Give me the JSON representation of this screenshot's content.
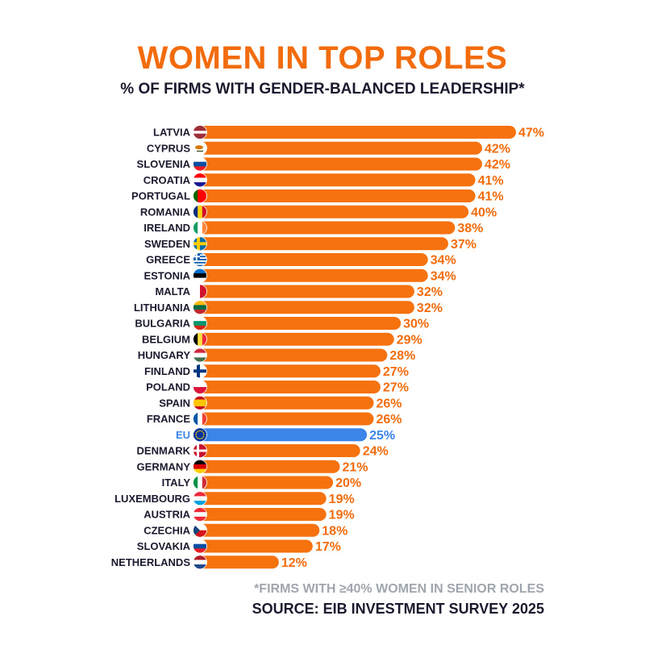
{
  "header": {
    "title": "WOMEN IN TOP ROLES",
    "subtitle": "% OF FIRMS WITH GENDER-BALANCED LEADERSHIP*"
  },
  "footer": {
    "note": "*FIRMS WITH ≥40% WOMEN IN SENIOR ROLES",
    "source": "SOURCE: EIB INVESTMENT SURVEY 2025"
  },
  "colors": {
    "bar": "#f5720f",
    "highlight": "#3b84e8",
    "label": "#1a1a2e",
    "value": "#f26c0d"
  },
  "chart_data": {
    "type": "bar",
    "orientation": "horizontal",
    "title": "WOMEN IN TOP ROLES",
    "subtitle": "% OF FIRMS WITH GENDER-BALANCED LEADERSHIP*",
    "xlabel": "",
    "ylabel": "",
    "unit": "%",
    "xlim": [
      0,
      47
    ],
    "highlight": "EU",
    "categories": [
      "LATVIA",
      "CYPRUS",
      "SLOVENIA",
      "CROATIA",
      "PORTUGAL",
      "ROMANIA",
      "IRELAND",
      "SWEDEN",
      "GREECE",
      "ESTONIA",
      "MALTA",
      "LITHUANIA",
      "BULGARIA",
      "BELGIUM",
      "HUNGARY",
      "FINLAND",
      "POLAND",
      "SPAIN",
      "FRANCE",
      "EU",
      "DENMARK",
      "GERMANY",
      "ITALY",
      "LUXEMBOURG",
      "AUSTRIA",
      "CZECHIA",
      "SLOVAKIA",
      "NETHERLANDS"
    ],
    "values": [
      47,
      42,
      42,
      41,
      41,
      40,
      38,
      37,
      34,
      34,
      32,
      32,
      30,
      29,
      28,
      27,
      27,
      26,
      26,
      25,
      24,
      21,
      20,
      19,
      19,
      18,
      17,
      12
    ],
    "value_labels": [
      "47%",
      "42%",
      "42%",
      "41%",
      "41%",
      "40%",
      "38%",
      "37%",
      "34%",
      "34%",
      "32%",
      "32%",
      "30%",
      "29%",
      "28%",
      "27%",
      "27%",
      "26%",
      "26%",
      "25%",
      "24%",
      "21%",
      "20%",
      "19%",
      "19%",
      "18%",
      "17%",
      "12%"
    ],
    "flag_icons": [
      "latvia-flag-icon",
      "cyprus-flag-icon",
      "slovenia-flag-icon",
      "croatia-flag-icon",
      "portugal-flag-icon",
      "romania-flag-icon",
      "ireland-flag-icon",
      "sweden-flag-icon",
      "greece-flag-icon",
      "estonia-flag-icon",
      "malta-flag-icon",
      "lithuania-flag-icon",
      "bulgaria-flag-icon",
      "belgium-flag-icon",
      "hungary-flag-icon",
      "finland-flag-icon",
      "poland-flag-icon",
      "spain-flag-icon",
      "france-flag-icon",
      "eu-flag-icon",
      "denmark-flag-icon",
      "germany-flag-icon",
      "italy-flag-icon",
      "luxembourg-flag-icon",
      "austria-flag-icon",
      "czechia-flag-icon",
      "slovakia-flag-icon",
      "netherlands-flag-icon"
    ]
  }
}
